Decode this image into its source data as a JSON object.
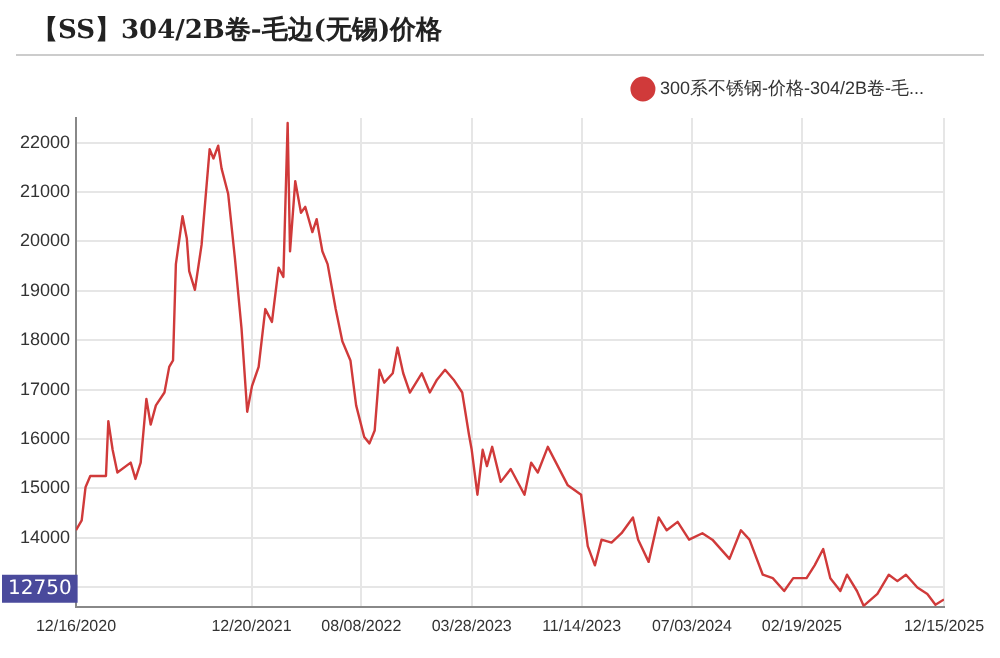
{
  "chart_data": {
    "type": "line",
    "title": "【SS】304/2B卷-毛边(无锡)价格",
    "legend": "top right",
    "grid": true,
    "marker": "none",
    "line_style": "solid",
    "xlim": [
      "2020-12-16",
      "2025-12-15"
    ],
    "xticks": [
      {
        "value": "2020-12-16",
        "label": "12/16/2020"
      },
      {
        "value": "2021-12-20",
        "label": "12/20/2021"
      },
      {
        "value": "2022-08-08",
        "label": "08/08/2022"
      },
      {
        "value": "2023-03-28",
        "label": "03/28/2023"
      },
      {
        "value": "2023-11-14",
        "label": "11/14/2023"
      },
      {
        "value": "2024-07-03",
        "label": "07/03/2024"
      },
      {
        "value": "2025-02-19",
        "label": "02/19/2025"
      },
      {
        "value": "2025-12-15",
        "label": "12/15/2025"
      }
    ],
    "ylim": [
      12600,
      22500
    ],
    "yticks": [
      {
        "value": 13000,
        "label": null
      },
      14000,
      15000,
      16000,
      17000,
      18000,
      19000,
      20000,
      21000,
      22000
    ],
    "annotations": [
      "12750"
    ],
    "x": [
      "2020-12-16",
      "2020-12-28",
      "2021-01-05",
      "2021-01-15",
      "2021-02-17",
      "2021-02-22",
      "2021-03-03",
      "2021-03-13",
      "2021-04-10",
      "2021-04-20",
      "2021-05-01",
      "2021-05-13",
      "2021-05-22",
      "2021-06-02",
      "2021-06-20",
      "2021-06-30",
      "2021-07-08",
      "2021-07-14",
      "2021-07-28",
      "2021-08-06",
      "2021-08-11",
      "2021-08-23",
      "2021-09-06",
      "2021-09-23",
      "2021-10-01",
      "2021-10-11",
      "2021-10-18",
      "2021-11-01",
      "2021-11-15",
      "2021-11-29",
      "2021-12-11",
      "2021-12-21",
      "2022-01-04",
      "2022-01-18",
      "2022-02-01",
      "2022-02-15",
      "2022-02-25",
      "2022-03-06",
      "2022-03-11",
      "2022-03-22",
      "2022-04-03",
      "2022-04-12",
      "2022-04-27",
      "2022-05-06",
      "2022-05-18",
      "2022-05-29",
      "2022-06-15",
      "2022-06-29",
      "2022-07-16",
      "2022-07-28",
      "2022-08-14",
      "2022-08-25",
      "2022-09-05",
      "2022-09-15",
      "2022-09-25",
      "2022-10-13",
      "2022-10-23",
      "2022-11-04",
      "2022-11-18",
      "2022-12-13",
      "2022-12-30",
      "2023-01-14",
      "2023-01-31",
      "2023-02-18",
      "2023-03-08",
      "2023-03-22",
      "2023-03-28",
      "2023-04-09",
      "2023-04-20",
      "2023-04-29",
      "2023-05-10",
      "2023-05-28",
      "2023-06-18",
      "2023-07-17",
      "2023-07-31",
      "2023-08-14",
      "2023-09-04",
      "2023-09-25",
      "2023-10-16",
      "2023-11-13",
      "2023-11-27",
      "2023-12-12",
      "2023-12-26",
      "2024-01-16",
      "2024-02-06",
      "2024-03-01",
      "2024-03-12",
      "2024-04-03",
      "2024-04-24",
      "2024-05-11",
      "2024-06-03",
      "2024-06-27",
      "2024-07-25",
      "2024-08-15",
      "2024-09-20",
      "2024-10-14",
      "2024-11-01",
      "2024-11-29",
      "2024-12-20",
      "2025-01-13",
      "2025-02-01",
      "2025-03-01",
      "2025-03-18",
      "2025-04-05",
      "2025-04-20",
      "2025-05-11",
      "2025-05-25",
      "2025-06-15",
      "2025-06-29",
      "2025-07-28",
      "2025-08-21",
      "2025-09-08",
      "2025-09-26",
      "2025-10-20",
      "2025-11-10",
      "2025-11-27",
      "2025-12-15"
    ],
    "series": [
      {
        "name": "300系不锈钢-价格-304/2B卷-毛...",
        "color": "#d03a3a",
        "values": [
          14150,
          14350,
          15020,
          15250,
          15250,
          16360,
          15780,
          15320,
          15520,
          15190,
          15520,
          16810,
          16290,
          16680,
          16940,
          17460,
          17590,
          19540,
          20510,
          20060,
          19400,
          19020,
          19930,
          21870,
          21680,
          21940,
          21480,
          20960,
          19670,
          18240,
          16550,
          17070,
          17460,
          18630,
          18370,
          19470,
          19280,
          22400,
          19800,
          21220,
          20580,
          20700,
          20190,
          20450,
          19800,
          19540,
          18630,
          17980,
          17590,
          16680,
          16040,
          15910,
          16170,
          17400,
          17140,
          17330,
          17850,
          17330,
          16940,
          17330,
          16940,
          17200,
          17400,
          17200,
          16940,
          16100,
          15780,
          14870,
          15780,
          15450,
          15840,
          15130,
          15390,
          14870,
          15520,
          15320,
          15840,
          15450,
          15060,
          14870,
          13830,
          13440,
          13960,
          13900,
          14090,
          14410,
          13960,
          13510,
          14410,
          14150,
          14320,
          13960,
          14090,
          13960,
          13570,
          14150,
          13960,
          13250,
          13180,
          12920,
          13180,
          13180,
          13440,
          13770,
          13180,
          12920,
          13250,
          12920,
          12620,
          12860,
          13250,
          13120,
          13250,
          12990,
          12860,
          12640,
          12750
        ]
      }
    ]
  }
}
